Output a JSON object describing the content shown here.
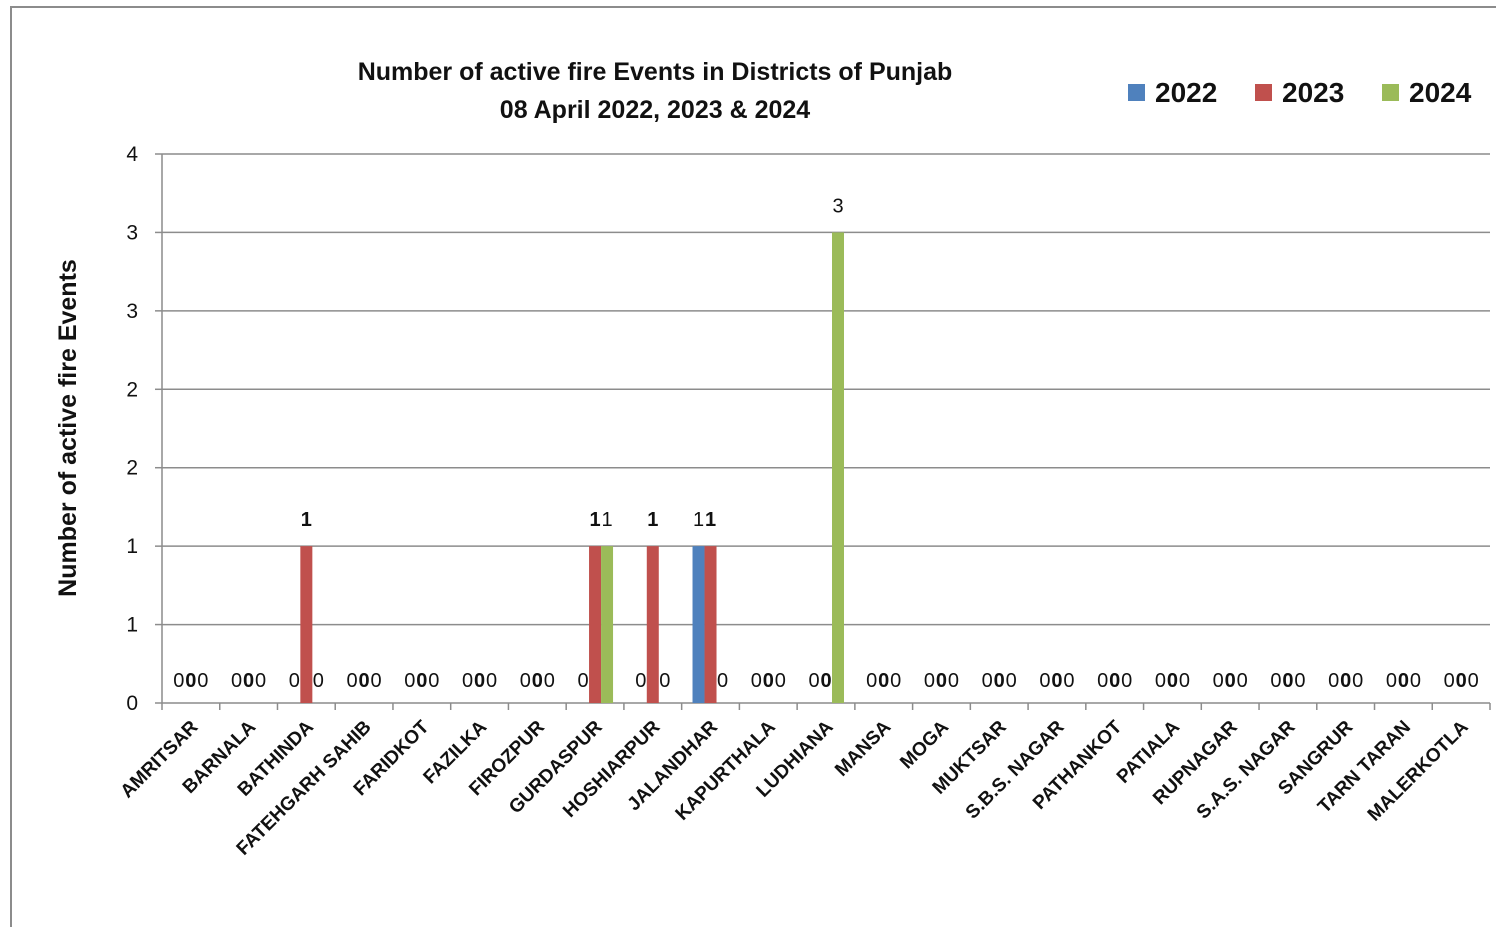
{
  "chart_data": {
    "type": "bar",
    "title": [
      "Number of active fire Events in Districts of Punjab",
      "08 April 2022, 2023 & 2024"
    ],
    "ylabel": "Number of active fire Events",
    "xlabel": "",
    "ylim": [
      0,
      3.5
    ],
    "yticks": [
      0,
      0.5,
      1,
      1.5,
      2,
      2.5,
      3,
      3.5
    ],
    "ytick_labels": [
      "0",
      "1",
      "1",
      "2",
      "2",
      "3",
      "3",
      "4"
    ],
    "grid": true,
    "legend_position": "top-right",
    "categories": [
      "AMRITSAR",
      "BARNALA",
      "BATHINDA",
      "FATEHGARH SAHIB",
      "FARIDKOT",
      "FAZILKA",
      "FIROZPUR",
      "GURDASPUR",
      "HOSHIARPUR",
      "JALANDHAR",
      "KAPURTHALA",
      "LUDHIANA",
      "MANSA",
      "MOGA",
      "MUKTSAR",
      "S.B.S. NAGAR",
      "PATHANKOT",
      "PATIALA",
      "RUPNAGAR",
      "S.A.S. NAGAR",
      "SANGRUR",
      "TARN TARAN",
      "MALERKOTLA"
    ],
    "series": [
      {
        "name": "2022",
        "color": "#4f81bd",
        "values": [
          0,
          0,
          0,
          0,
          0,
          0,
          0,
          0,
          0,
          1,
          0,
          0,
          0,
          0,
          0,
          0,
          0,
          0,
          0,
          0,
          0,
          0,
          0
        ]
      },
      {
        "name": "2023",
        "color": "#c0504d",
        "values": [
          0,
          0,
          1,
          0,
          0,
          0,
          0,
          1,
          1,
          1,
          0,
          0,
          0,
          0,
          0,
          0,
          0,
          0,
          0,
          0,
          0,
          0,
          0
        ]
      },
      {
        "name": "2024",
        "color": "#9bbb59",
        "values": [
          0,
          0,
          0,
          0,
          0,
          0,
          0,
          1,
          0,
          0,
          0,
          3,
          0,
          0,
          0,
          0,
          0,
          0,
          0,
          0,
          0,
          0,
          0
        ]
      }
    ]
  }
}
